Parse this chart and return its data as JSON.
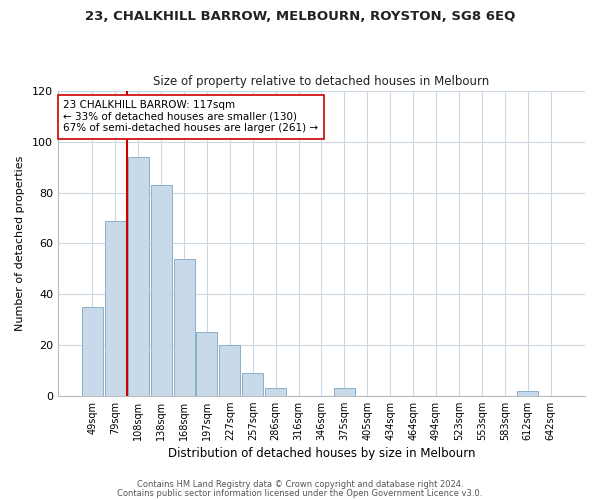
{
  "title": "23, CHALKHILL BARROW, MELBOURN, ROYSTON, SG8 6EQ",
  "subtitle": "Size of property relative to detached houses in Melbourn",
  "xlabel": "Distribution of detached houses by size in Melbourn",
  "ylabel": "Number of detached properties",
  "bar_color": "#c8daea",
  "bar_edge_color": "#8ab0cc",
  "categories": [
    "49sqm",
    "79sqm",
    "108sqm",
    "138sqm",
    "168sqm",
    "197sqm",
    "227sqm",
    "257sqm",
    "286sqm",
    "316sqm",
    "346sqm",
    "375sqm",
    "405sqm",
    "434sqm",
    "464sqm",
    "494sqm",
    "523sqm",
    "553sqm",
    "583sqm",
    "612sqm",
    "642sqm"
  ],
  "values": [
    35,
    69,
    94,
    83,
    54,
    25,
    20,
    9,
    3,
    0,
    0,
    3,
    0,
    0,
    0,
    0,
    0,
    0,
    0,
    2,
    0
  ],
  "ylim": [
    0,
    120
  ],
  "yticks": [
    0,
    20,
    40,
    60,
    80,
    100,
    120
  ],
  "vline_x": 1.5,
  "vline_color": "#cc0000",
  "annotation_title": "23 CHALKHILL BARROW: 117sqm",
  "annotation_line1": "← 33% of detached houses are smaller (130)",
  "annotation_line2": "67% of semi-detached houses are larger (261) →",
  "annotation_box_edge": "#cc0000",
  "footer1": "Contains HM Land Registry data © Crown copyright and database right 2024.",
  "footer2": "Contains public sector information licensed under the Open Government Licence v3.0.",
  "background_color": "#ffffff",
  "grid_color": "#ccd8e4"
}
